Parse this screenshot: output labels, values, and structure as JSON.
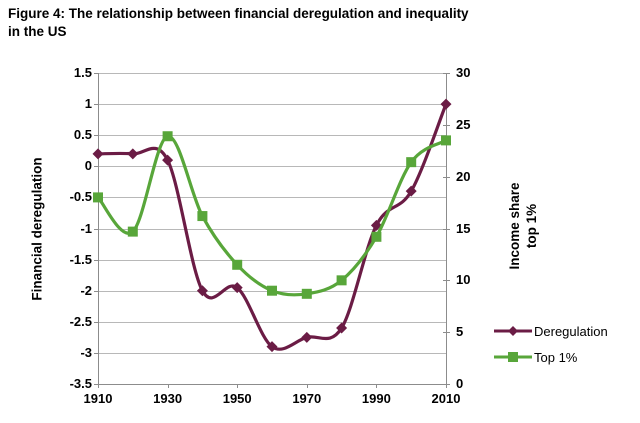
{
  "header": {
    "title_line1": "Figure 4: The relationship between financial deregulation and inequality",
    "title_line2": "in the US"
  },
  "chart_data": {
    "type": "line",
    "title": "Figure 4: The relationship between financial deregulation and inequality in the US",
    "x": [
      1910,
      1920,
      1930,
      1940,
      1950,
      1960,
      1970,
      1980,
      1990,
      2000,
      2010
    ],
    "x_axis": {
      "min": 1910,
      "max": 2010,
      "step": 10,
      "tick_years": [
        1910,
        1930,
        1950,
        1970,
        1990,
        2010
      ],
      "tick_labels": [
        "1910",
        "1930",
        "1950",
        "1970",
        "1990",
        "2010"
      ]
    },
    "left_axis": {
      "label": "Financial deregulation",
      "min": -3.5,
      "max": 1.5,
      "step": 0.5,
      "tick_labels": [
        "1.5",
        "1",
        "0.5",
        "0",
        "-0.5",
        "-1",
        "-1.5",
        "-2",
        "-2.5",
        "-3",
        "-3.5"
      ]
    },
    "right_axis": {
      "label": "Income share top 1%",
      "label_lines": [
        "Income share",
        "top 1%"
      ],
      "min": 0,
      "max": 30,
      "step": 5,
      "tick_labels": [
        "30",
        "25",
        "20",
        "15",
        "10",
        "5",
        "0"
      ]
    },
    "series": [
      {
        "name": "Deregulation",
        "axis": "left",
        "marker": "diamond",
        "color": "#6b1c45",
        "values": [
          0.2,
          0.2,
          0.1,
          -2.0,
          -1.95,
          -2.9,
          -2.75,
          -2.6,
          -0.95,
          -0.4,
          1.0
        ]
      },
      {
        "name": "Top 1%",
        "axis": "right",
        "marker": "square",
        "color": "#58a63a",
        "values": [
          18,
          14.7,
          23.9,
          16.2,
          11.5,
          9,
          8.7,
          10,
          14.2,
          21.4,
          23.5
        ]
      }
    ],
    "grid": true,
    "legend_position": "right-bottom",
    "colors": {
      "gridline": "#b8b8b8",
      "axis": "#8c8c8c",
      "text": "#000000"
    }
  }
}
